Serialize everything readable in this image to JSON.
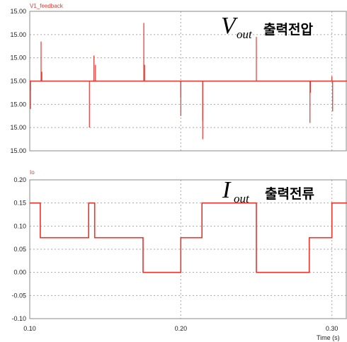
{
  "chart_data": [
    {
      "type": "line",
      "series": [
        {
          "name": "V1_feedback",
          "color": "#e8352e"
        }
      ],
      "y_tick_labels": [
        "15.00",
        "15.00",
        "15.00",
        "15.00",
        "15.00",
        "15.00",
        "15.00"
      ],
      "ylim": [
        -3,
        3
      ],
      "xlim": [
        0.1,
        0.31
      ],
      "baseline": 0,
      "spikes": [
        {
          "x": 0.1005,
          "y": -0.4
        },
        {
          "x": 0.1005,
          "y": -1.2
        },
        {
          "x": 0.1075,
          "y": 1.7
        },
        {
          "x": 0.108,
          "y": 0.4
        },
        {
          "x": 0.1395,
          "y": -2.0
        },
        {
          "x": 0.1425,
          "y": 1.1
        },
        {
          "x": 0.1435,
          "y": 0.7
        },
        {
          "x": 0.1755,
          "y": 2.5
        },
        {
          "x": 0.176,
          "y": 0.7
        },
        {
          "x": 0.2,
          "y": -1.5
        },
        {
          "x": 0.2,
          "y": -0.7
        },
        {
          "x": 0.2145,
          "y": -2.5
        },
        {
          "x": 0.2145,
          "y": -1.7
        },
        {
          "x": 0.25,
          "y": 1.9
        },
        {
          "x": 0.2855,
          "y": -1.8
        },
        {
          "x": 0.2858,
          "y": -0.5
        },
        {
          "x": 0.3,
          "y": 0.2
        },
        {
          "x": 0.3005,
          "y": -1.3
        }
      ],
      "annotation": {
        "var": "V",
        "sub": "out",
        "text": "출력전압"
      }
    },
    {
      "type": "line",
      "series": [
        {
          "name": "Io",
          "color": "#e8352e",
          "x": [
            0.1,
            0.107,
            0.107,
            0.139,
            0.139,
            0.143,
            0.143,
            0.175,
            0.175,
            0.2,
            0.2,
            0.214,
            0.214,
            0.25,
            0.25,
            0.285,
            0.285,
            0.3,
            0.3,
            0.31
          ],
          "y": [
            0.15,
            0.15,
            0.075,
            0.075,
            0.15,
            0.15,
            0.075,
            0.075,
            0.0,
            0.0,
            0.075,
            0.075,
            0.15,
            0.15,
            0.0,
            0.0,
            0.075,
            0.075,
            0.15,
            0.15
          ]
        }
      ],
      "y_ticks": [
        "0.20",
        "0.15",
        "0.10",
        "0.05",
        "0.00",
        "-0.05",
        "-0.10"
      ],
      "ylim": [
        -0.1,
        0.2
      ],
      "xlim": [
        0.1,
        0.31
      ],
      "x_ticks": [
        "0.10",
        "0.20",
        "0.30"
      ],
      "xlabel": "Time (s)",
      "annotation": {
        "var": "I",
        "sub": "out",
        "text": "출력전류"
      }
    }
  ]
}
